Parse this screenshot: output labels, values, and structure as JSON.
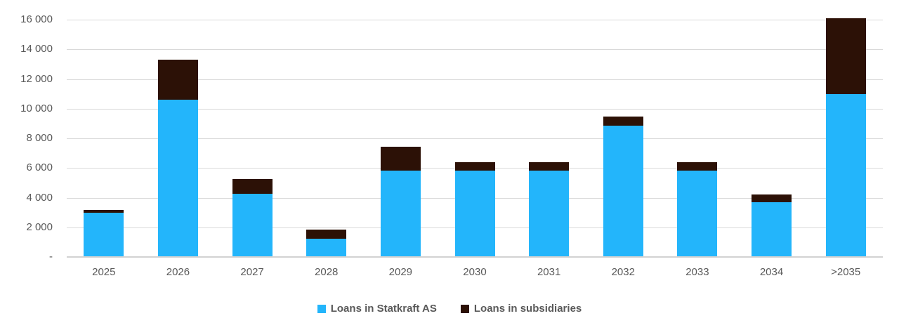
{
  "chart_data": {
    "type": "bar",
    "stacked": true,
    "title": "",
    "xlabel": "",
    "ylabel": "",
    "categories": [
      "2025",
      "2026",
      "2027",
      "2028",
      "2029",
      "2030",
      "2031",
      "2032",
      "2033",
      "2034",
      ">2035"
    ],
    "series": [
      {
        "name": "Loans in Statkraft AS",
        "color": "#23b5fb",
        "values": [
          3000,
          10600,
          4250,
          1250,
          5800,
          5800,
          5800,
          8850,
          5800,
          3700,
          11000
        ]
      },
      {
        "name": "Loans in subsidiaries",
        "color": "#2c1106",
        "values": [
          150,
          2700,
          1000,
          600,
          1650,
          600,
          600,
          600,
          600,
          500,
          5100
        ]
      }
    ],
    "ylim": [
      0,
      16000
    ],
    "ytick_interval": 2000,
    "ytick_labels": [
      "-",
      "2 000",
      "4 000",
      "6 000",
      "8 000",
      "10 000",
      "12 000",
      "14 000",
      "16 000"
    ],
    "grid": true,
    "gridline_color": "#d9d9d9",
    "axis_line_color": "#d2d2d2",
    "tick_label_color": "#595959",
    "legend_position": "bottom-center",
    "background_color": "#ffffff"
  }
}
